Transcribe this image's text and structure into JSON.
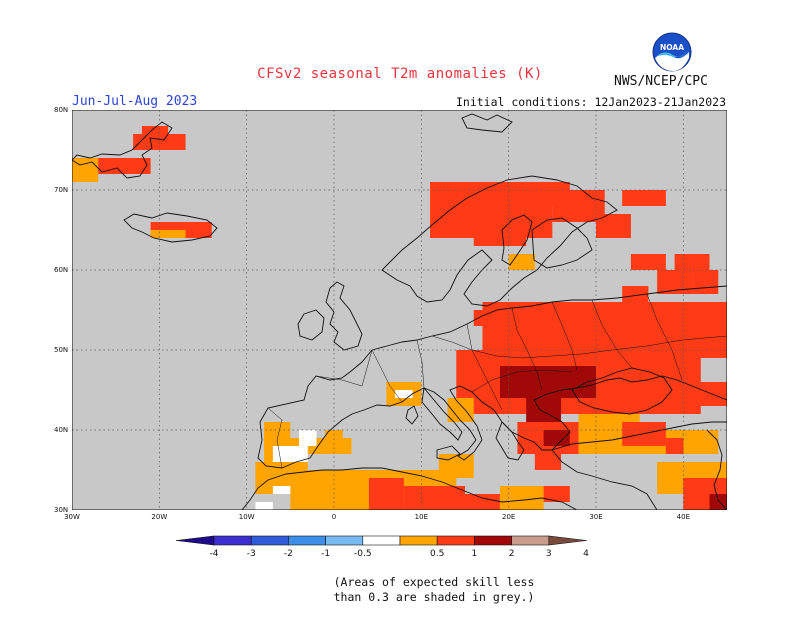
{
  "header": {
    "title": "CFSv2 seasonal T2m anomalies (K)",
    "period": "Jun-Jul-Aug 2023",
    "initial_conditions": "Initial conditions: 12Jan2023-21Jan2023",
    "agency": "NWS/NCEP/CPC",
    "logo_text": "NOAA"
  },
  "map": {
    "region": "Europe",
    "projection": "lat-lon",
    "lon_range": [
      -30,
      45
    ],
    "lat_range": [
      30,
      80
    ],
    "lat_labels": [
      "80N",
      "70N",
      "60N",
      "50N",
      "40N",
      "30N"
    ],
    "lon_labels": [
      "30W",
      "20W",
      "10W",
      "0",
      "10E",
      "20E",
      "30E",
      "40E"
    ],
    "background_color": "#c8c8c8",
    "gridlines": "dotted"
  },
  "colorbar": {
    "ticks": [
      "-4",
      "-3",
      "-2",
      "-1",
      "-0.5",
      "0.5",
      "1",
      "2",
      "3",
      "4"
    ],
    "colors": [
      "#1e0a8c",
      "#3d2fcf",
      "#2f5ad8",
      "#3c8ee8",
      "#78baf2",
      "#ffffff",
      "#ffa400",
      "#ff3a16",
      "#a10808",
      "#c89c8c",
      "#7a4a3c"
    ]
  },
  "note": {
    "line1": "(Areas of expected skill less",
    "line2": "than 0.3 are shaded in grey.)"
  }
}
